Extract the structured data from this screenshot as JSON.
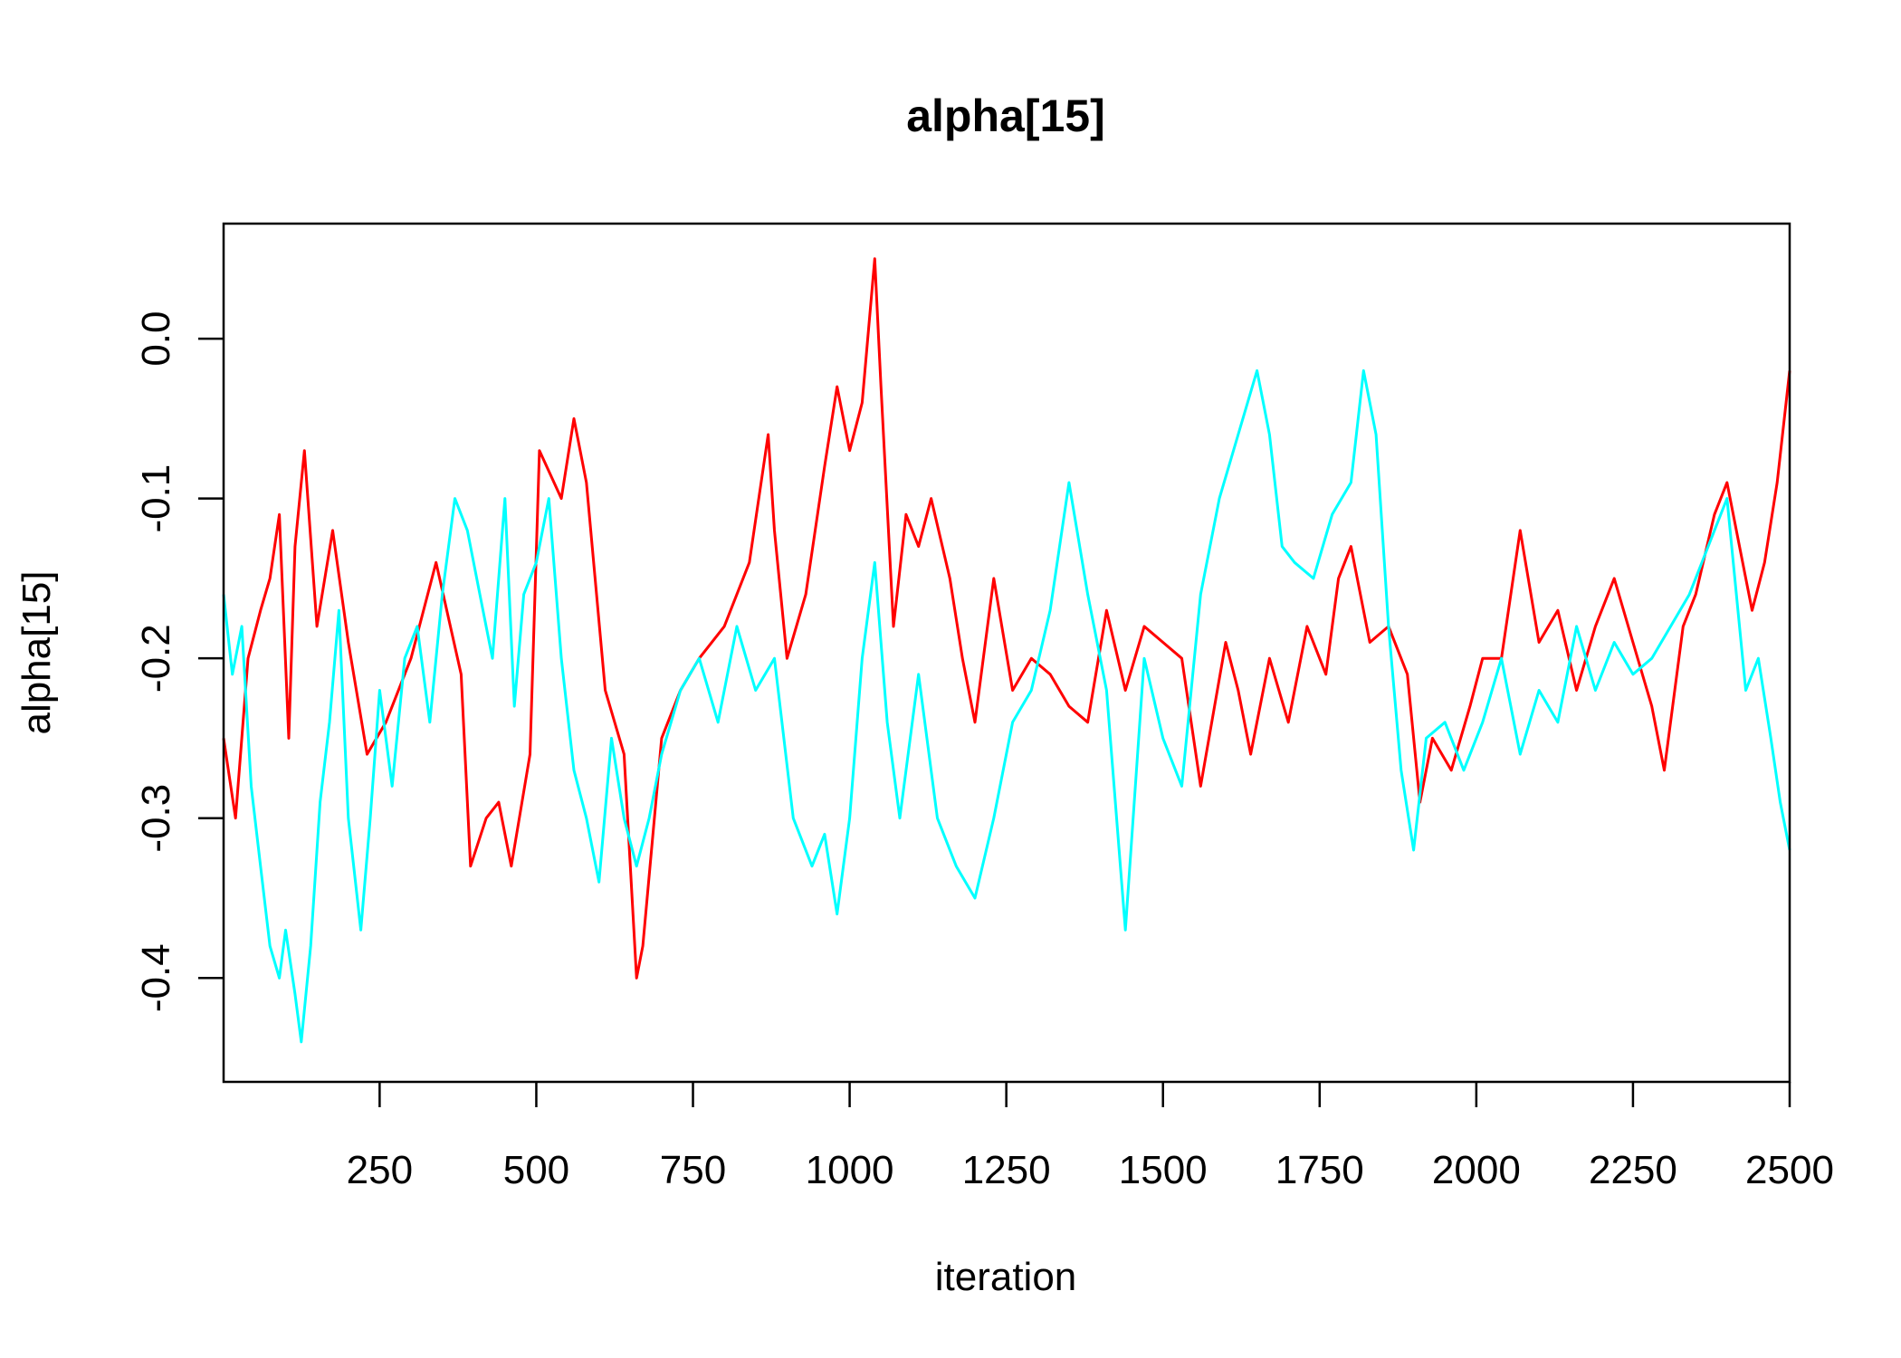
{
  "chart_data": {
    "type": "line",
    "title": "alpha[15]",
    "xlabel": "iteration",
    "ylabel": "alpha[15]",
    "xlim": [
      1,
      2500
    ],
    "ylim": [
      -0.465,
      0.072
    ],
    "x_ticks": [
      250,
      500,
      750,
      1000,
      1250,
      1500,
      1750,
      2000,
      2250,
      2500
    ],
    "x_tick_labels": [
      "250",
      "500",
      "750",
      "1000",
      "1250",
      "1500",
      "1750",
      "2000",
      "2250",
      "2500"
    ],
    "y_ticks": [
      -0.4,
      -0.3,
      -0.2,
      -0.1,
      0.0
    ],
    "y_tick_labels": [
      "-0.4",
      "-0.3",
      "-0.2",
      "-0.1",
      "0.0"
    ],
    "grid": false,
    "legend": "none",
    "series": [
      {
        "color": "#ff0000",
        "x": [
          1,
          20,
          40,
          60,
          75,
          90,
          105,
          115,
          130,
          150,
          175,
          200,
          230,
          260,
          300,
          340,
          380,
          395,
          420,
          440,
          460,
          490,
          505,
          540,
          560,
          580,
          610,
          640,
          660,
          670,
          700,
          730,
          760,
          800,
          840,
          870,
          880,
          900,
          930,
          960,
          980,
          1000,
          1020,
          1040,
          1050,
          1070,
          1090,
          1110,
          1130,
          1160,
          1180,
          1200,
          1230,
          1260,
          1290,
          1320,
          1350,
          1380,
          1410,
          1440,
          1470,
          1500,
          1530,
          1560,
          1600,
          1620,
          1640,
          1670,
          1700,
          1730,
          1760,
          1780,
          1800,
          1830,
          1860,
          1890,
          1910,
          1930,
          1960,
          1990,
          2010,
          2040,
          2070,
          2100,
          2130,
          2160,
          2190,
          2220,
          2250,
          2280,
          2300,
          2330,
          2350,
          2380,
          2400,
          2420,
          2440,
          2460,
          2480,
          2500
        ],
        "y": [
          -0.25,
          -0.3,
          -0.2,
          -0.17,
          -0.15,
          -0.11,
          -0.25,
          -0.13,
          -0.07,
          -0.18,
          -0.12,
          -0.19,
          -0.26,
          -0.24,
          -0.2,
          -0.14,
          -0.21,
          -0.33,
          -0.3,
          -0.29,
          -0.33,
          -0.26,
          -0.07,
          -0.1,
          -0.05,
          -0.09,
          -0.22,
          -0.26,
          -0.4,
          -0.38,
          -0.25,
          -0.22,
          -0.2,
          -0.18,
          -0.14,
          -0.06,
          -0.12,
          -0.2,
          -0.16,
          -0.08,
          -0.03,
          -0.07,
          -0.04,
          0.05,
          -0.03,
          -0.18,
          -0.11,
          -0.13,
          -0.1,
          -0.15,
          -0.2,
          -0.24,
          -0.15,
          -0.22,
          -0.2,
          -0.21,
          -0.23,
          -0.24,
          -0.17,
          -0.22,
          -0.18,
          -0.19,
          -0.2,
          -0.28,
          -0.19,
          -0.22,
          -0.26,
          -0.2,
          -0.24,
          -0.18,
          -0.21,
          -0.15,
          -0.13,
          -0.19,
          -0.18,
          -0.21,
          -0.29,
          -0.25,
          -0.27,
          -0.23,
          -0.2,
          -0.2,
          -0.12,
          -0.19,
          -0.17,
          -0.22,
          -0.18,
          -0.15,
          -0.19,
          -0.23,
          -0.27,
          -0.18,
          -0.16,
          -0.11,
          -0.09,
          -0.13,
          -0.17,
          -0.14,
          -0.09,
          -0.02
        ]
      },
      {
        "color": "#00ffff",
        "x": [
          1,
          15,
          30,
          45,
          60,
          75,
          90,
          100,
          115,
          125,
          140,
          155,
          170,
          185,
          200,
          220,
          235,
          250,
          270,
          290,
          310,
          330,
          350,
          370,
          390,
          410,
          430,
          450,
          465,
          480,
          500,
          520,
          540,
          560,
          580,
          600,
          620,
          640,
          660,
          680,
          700,
          730,
          760,
          790,
          820,
          850,
          880,
          910,
          940,
          960,
          980,
          1000,
          1020,
          1040,
          1060,
          1080,
          1110,
          1140,
          1170,
          1200,
          1230,
          1260,
          1290,
          1320,
          1350,
          1380,
          1410,
          1440,
          1470,
          1500,
          1530,
          1560,
          1590,
          1620,
          1650,
          1670,
          1690,
          1710,
          1740,
          1770,
          1800,
          1820,
          1840,
          1860,
          1880,
          1900,
          1920,
          1950,
          1980,
          2010,
          2040,
          2070,
          2100,
          2130,
          2160,
          2190,
          2220,
          2250,
          2280,
          2310,
          2340,
          2370,
          2400,
          2430,
          2450,
          2470,
          2485,
          2500
        ],
        "y": [
          -0.16,
          -0.21,
          -0.18,
          -0.28,
          -0.33,
          -0.38,
          -0.4,
          -0.37,
          -0.41,
          -0.44,
          -0.38,
          -0.29,
          -0.24,
          -0.17,
          -0.3,
          -0.37,
          -0.3,
          -0.22,
          -0.28,
          -0.2,
          -0.18,
          -0.24,
          -0.16,
          -0.1,
          -0.12,
          -0.16,
          -0.2,
          -0.1,
          -0.23,
          -0.16,
          -0.14,
          -0.1,
          -0.2,
          -0.27,
          -0.3,
          -0.34,
          -0.25,
          -0.3,
          -0.33,
          -0.3,
          -0.26,
          -0.22,
          -0.2,
          -0.24,
          -0.18,
          -0.22,
          -0.2,
          -0.3,
          -0.33,
          -0.31,
          -0.36,
          -0.3,
          -0.2,
          -0.14,
          -0.24,
          -0.3,
          -0.21,
          -0.3,
          -0.33,
          -0.35,
          -0.3,
          -0.24,
          -0.22,
          -0.17,
          -0.09,
          -0.16,
          -0.22,
          -0.37,
          -0.2,
          -0.25,
          -0.28,
          -0.16,
          -0.1,
          -0.06,
          -0.02,
          -0.06,
          -0.13,
          -0.14,
          -0.15,
          -0.11,
          -0.09,
          -0.02,
          -0.06,
          -0.18,
          -0.27,
          -0.32,
          -0.25,
          -0.24,
          -0.27,
          -0.24,
          -0.2,
          -0.26,
          -0.22,
          -0.24,
          -0.18,
          -0.22,
          -0.19,
          -0.21,
          -0.2,
          -0.18,
          -0.16,
          -0.13,
          -0.1,
          -0.22,
          -0.2,
          -0.25,
          -0.29,
          -0.32
        ]
      }
    ]
  }
}
